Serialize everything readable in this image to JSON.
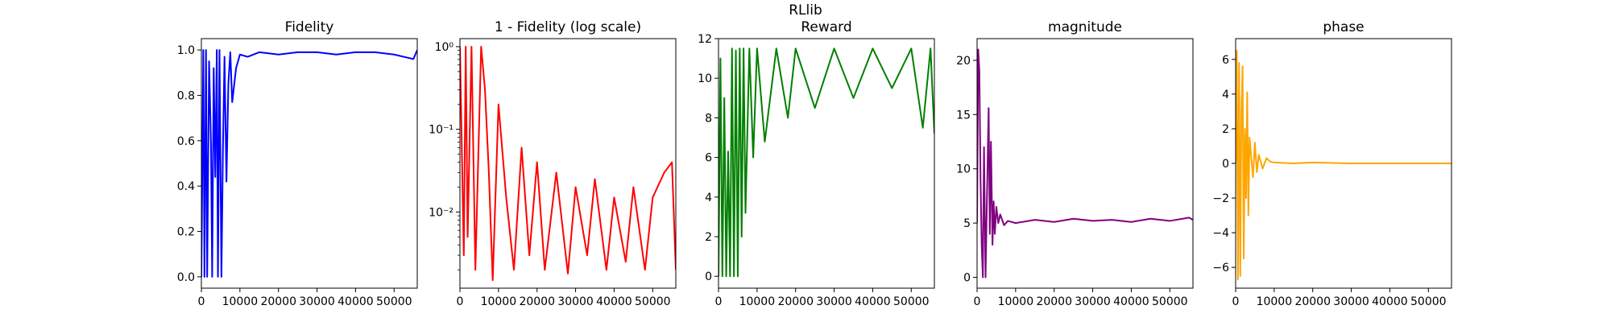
{
  "figure": {
    "suptitle": "RLlib"
  },
  "chart_data": [
    {
      "type": "line",
      "title": "Fidelity",
      "xlabel": "",
      "ylabel": "",
      "xlim": [
        0,
        56000
      ],
      "ylim": [
        -0.05,
        1.05
      ],
      "xticks": [
        0,
        10000,
        20000,
        30000,
        40000,
        50000
      ],
      "yticks": [
        0.0,
        0.2,
        0.4,
        0.6,
        0.8,
        1.0
      ],
      "ytick_labels": [
        "0.0",
        "0.2",
        "0.4",
        "0.6",
        "0.8",
        "1.0"
      ],
      "yscale": "linear",
      "color": "#0000ff",
      "series": [
        {
          "x": [
            0,
            500,
            800,
            1200,
            1500,
            2000,
            2500,
            2800,
            3200,
            3600,
            4000,
            4300,
            4700,
            5200,
            5600,
            6000,
            6500,
            7000,
            7500,
            8000,
            9000,
            10000,
            12000,
            15000,
            20000,
            25000,
            30000,
            35000,
            40000,
            45000,
            50000,
            55000,
            56000
          ],
          "y": [
            0.0,
            1.0,
            0.0,
            1.0,
            0.0,
            0.95,
            0.58,
            0.0,
            0.92,
            0.44,
            1.0,
            0.0,
            1.0,
            0.0,
            0.57,
            0.97,
            0.42,
            0.85,
            0.99,
            0.77,
            0.92,
            0.98,
            0.97,
            0.99,
            0.98,
            0.99,
            0.99,
            0.98,
            0.99,
            0.99,
            0.98,
            0.96,
            1.0
          ]
        }
      ]
    },
    {
      "type": "line",
      "title": "1 - Fidelity (log scale)",
      "xlabel": "",
      "ylabel": "",
      "xlim": [
        0,
        56000
      ],
      "ylim": [
        0.0012,
        1.25
      ],
      "xticks": [
        0,
        10000,
        20000,
        30000,
        40000,
        50000
      ],
      "yticks": [
        0.01,
        0.1,
        1.0
      ],
      "ytick_labels": [
        "10⁻²",
        "10⁻¹",
        "10⁰"
      ],
      "yscale": "log",
      "color": "#ff0000",
      "series": [
        {
          "x": [
            0,
            1000,
            1500,
            2000,
            3000,
            4000,
            5500,
            6500,
            7500,
            8500,
            10000,
            12000,
            14000,
            16000,
            18000,
            20000,
            22000,
            25000,
            28000,
            30000,
            33000,
            35000,
            38000,
            40000,
            43000,
            45000,
            48000,
            50000,
            53000,
            55000,
            56000
          ],
          "y": [
            1.0,
            0.003,
            1.0,
            0.005,
            1.0,
            0.002,
            1.0,
            0.3,
            0.03,
            0.0015,
            0.2,
            0.015,
            0.002,
            0.06,
            0.003,
            0.04,
            0.002,
            0.03,
            0.0018,
            0.02,
            0.003,
            0.025,
            0.002,
            0.015,
            0.0025,
            0.02,
            0.002,
            0.015,
            0.03,
            0.04,
            0.002
          ]
        }
      ]
    },
    {
      "type": "line",
      "title": "Reward",
      "xlabel": "",
      "ylabel": "",
      "xlim": [
        0,
        56000
      ],
      "ylim": [
        -0.6,
        12.0
      ],
      "xticks": [
        0,
        10000,
        20000,
        30000,
        40000,
        50000
      ],
      "yticks": [
        0,
        2,
        4,
        6,
        8,
        10,
        12
      ],
      "ytick_labels": [
        "0",
        "2",
        "4",
        "6",
        "8",
        "10",
        "12"
      ],
      "yscale": "linear",
      "color": "#008000",
      "series": [
        {
          "x": [
            0,
            500,
            1000,
            1500,
            2000,
            2500,
            3000,
            3500,
            4000,
            4500,
            5000,
            5500,
            6000,
            6500,
            7000,
            8000,
            9000,
            10000,
            12000,
            15000,
            18000,
            20000,
            25000,
            30000,
            35000,
            40000,
            45000,
            50000,
            53000,
            55000,
            56000
          ],
          "y": [
            0.0,
            11.0,
            0.0,
            9.0,
            0.0,
            6.3,
            0.0,
            11.5,
            0.0,
            11.4,
            0.0,
            11.5,
            2.0,
            11.5,
            3.2,
            11.5,
            6.0,
            11.5,
            6.8,
            11.5,
            8.0,
            11.5,
            8.5,
            11.5,
            9.0,
            11.5,
            9.5,
            11.5,
            7.5,
            11.5,
            7.2
          ]
        }
      ]
    },
    {
      "type": "line",
      "title": "magnitude",
      "xlabel": "",
      "ylabel": "",
      "xlim": [
        0,
        56000
      ],
      "ylim": [
        -1.0,
        22.0
      ],
      "xticks": [
        0,
        10000,
        20000,
        30000,
        40000,
        50000
      ],
      "yticks": [
        0,
        5,
        10,
        15,
        20
      ],
      "ytick_labels": [
        "0",
        "5",
        "10",
        "15",
        "20"
      ],
      "yscale": "linear",
      "color": "#800080",
      "series": [
        {
          "x": [
            0,
            300,
            600,
            900,
            1200,
            1500,
            1800,
            2200,
            2600,
            3000,
            3300,
            3600,
            4000,
            4300,
            4600,
            5000,
            5500,
            6000,
            7000,
            8000,
            10000,
            15000,
            20000,
            25000,
            30000,
            35000,
            40000,
            45000,
            50000,
            55000,
            56000
          ],
          "y": [
            5.0,
            21.0,
            19.0,
            9.0,
            3.0,
            0.0,
            12.0,
            0.0,
            8.0,
            15.6,
            4.0,
            12.5,
            3.0,
            7.0,
            4.0,
            6.5,
            5.0,
            5.8,
            4.8,
            5.2,
            5.0,
            5.3,
            5.1,
            5.4,
            5.2,
            5.3,
            5.1,
            5.4,
            5.2,
            5.5,
            5.3
          ]
        }
      ]
    },
    {
      "type": "line",
      "title": "phase",
      "xlabel": "",
      "ylabel": "",
      "xlim": [
        0,
        56000
      ],
      "ylim": [
        -7.2,
        7.2
      ],
      "xticks": [
        0,
        10000,
        20000,
        30000,
        40000,
        50000
      ],
      "yticks": [
        -6,
        -4,
        -2,
        0,
        2,
        4,
        6
      ],
      "ytick_labels": [
        "−6",
        "−4",
        "−2",
        "0",
        "2",
        "4",
        "6"
      ],
      "yscale": "linear",
      "color": "#ffa500",
      "series": [
        {
          "x": [
            0,
            300,
            600,
            900,
            1200,
            1500,
            1800,
            2100,
            2400,
            2700,
            3000,
            3300,
            3600,
            4000,
            4500,
            5000,
            5500,
            6000,
            7000,
            8000,
            9000,
            10000,
            15000,
            20000,
            30000,
            40000,
            50000,
            56000
          ],
          "y": [
            0.0,
            6.5,
            -6.7,
            5.8,
            -6.5,
            3.0,
            5.6,
            -5.5,
            2.0,
            -2.0,
            4.1,
            -3.0,
            1.5,
            0.5,
            -0.8,
            1.2,
            -0.5,
            0.5,
            -0.3,
            0.3,
            0.1,
            0.05,
            0.0,
            0.05,
            0.0,
            0.0,
            0.0,
            0.0
          ]
        }
      ]
    }
  ]
}
